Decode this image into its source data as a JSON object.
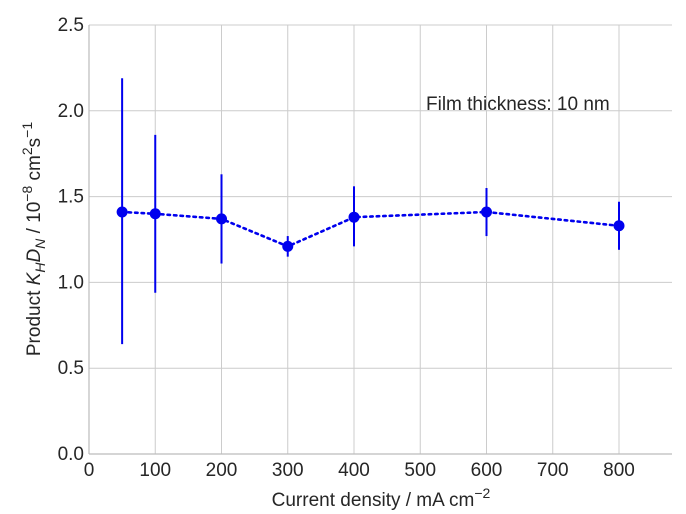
{
  "chart_data": {
    "type": "scatter",
    "title": "",
    "xlabel": {
      "prefix": "Current density / mA cm",
      "sup": "−2"
    },
    "ylabel": {
      "part1": "Product ",
      "k": "K",
      "k_sub": "H",
      "d": "D",
      "d_sub": "N",
      "part2": " / 10",
      "exp1": "−8",
      "part3": " cm",
      "exp2": "2",
      "part4": "s",
      "exp3": "−1"
    },
    "xlim": [
      0,
      880
    ],
    "ylim": [
      0,
      2.5
    ],
    "x_ticks": [
      0,
      100,
      200,
      300,
      400,
      500,
      600,
      700,
      800
    ],
    "x_tick_labels": [
      "0",
      "100",
      "200",
      "300",
      "400",
      "500",
      "600",
      "700",
      "800"
    ],
    "y_ticks": [
      0,
      0.5,
      1.0,
      1.5,
      2.0,
      2.5
    ],
    "y_tick_labels": [
      "0.0",
      "0.5",
      "1.0",
      "1.5",
      "2.0",
      "2.5"
    ],
    "grid": true,
    "annotation": "Film thickness: 10 nm",
    "series": [
      {
        "color": "#0000ee",
        "line_style": "dotted",
        "points": [
          {
            "x": 50,
            "y": 1.41,
            "err_low": 0.64,
            "err_high": 2.19
          },
          {
            "x": 100,
            "y": 1.4,
            "err_low": 0.94,
            "err_high": 1.86
          },
          {
            "x": 200,
            "y": 1.37,
            "err_low": 1.11,
            "err_high": 1.63
          },
          {
            "x": 300,
            "y": 1.21,
            "err_low": 1.15,
            "err_high": 1.27
          },
          {
            "x": 400,
            "y": 1.38,
            "err_low": 1.21,
            "err_high": 1.56
          },
          {
            "x": 600,
            "y": 1.41,
            "err_low": 1.27,
            "err_high": 1.55
          },
          {
            "x": 800,
            "y": 1.33,
            "err_low": 1.19,
            "err_high": 1.47
          }
        ]
      }
    ]
  }
}
